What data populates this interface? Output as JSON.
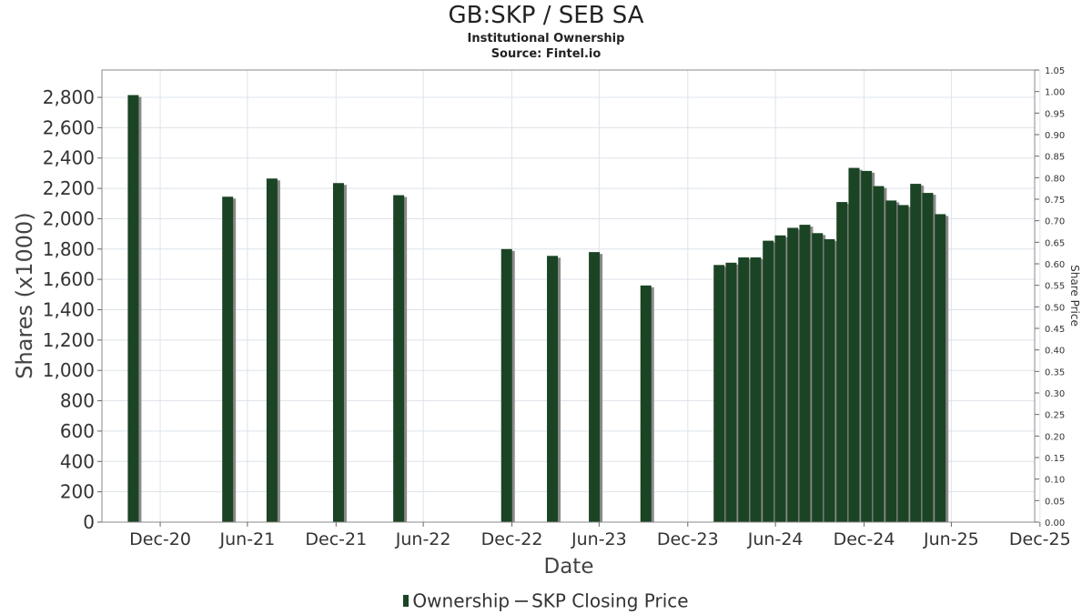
{
  "header": {
    "title": "GB:SKP / SEB SA",
    "subtitle": "Institutional Ownership",
    "source": "Source: Fintel.io"
  },
  "legend": {
    "ownership_label": "Ownership",
    "price_label": "SKP Closing Price"
  },
  "colors": {
    "bar": "#1b4424",
    "bar_shadow": "#8a8a8a",
    "grid": "#dde3ea",
    "frame": "#888888"
  },
  "chart_data": {
    "type": "bar",
    "title": "GB:SKP / SEB SA",
    "xlabel": "Date",
    "ylabel": "Shares (x1000)",
    "y2label": "Share Price",
    "ylim": [
      0,
      2980
    ],
    "y2lim": [
      0,
      1.05
    ],
    "yticks": [
      0,
      200,
      400,
      600,
      800,
      1000,
      1200,
      1400,
      1600,
      1800,
      2000,
      2200,
      2400,
      2600,
      2800
    ],
    "y2ticks": [
      "0.00",
      "0.05",
      "0.10",
      "0.15",
      "0.20",
      "0.25",
      "0.30",
      "0.35",
      "0.40",
      "0.45",
      "0.50",
      "0.55",
      "0.60",
      "0.65",
      "0.70",
      "0.75",
      "0.80",
      "0.85",
      "0.90",
      "0.95",
      "1.00",
      "1.05"
    ],
    "xlim": [
      "2020-09-01",
      "2025-12-20"
    ],
    "xticks": [
      {
        "date": "2020-12-31",
        "label": "Dec-20"
      },
      {
        "date": "2021-06-30",
        "label": "Jun-21"
      },
      {
        "date": "2021-12-31",
        "label": "Dec-21"
      },
      {
        "date": "2022-06-30",
        "label": "Jun-22"
      },
      {
        "date": "2022-12-31",
        "label": "Dec-22"
      },
      {
        "date": "2023-06-30",
        "label": "Jun-23"
      },
      {
        "date": "2023-12-31",
        "label": "Dec-23"
      },
      {
        "date": "2024-06-30",
        "label": "Jun-24"
      },
      {
        "date": "2024-12-31",
        "label": "Dec-24"
      },
      {
        "date": "2025-06-30",
        "label": "Jun-25"
      },
      {
        "date": "2025-12-31",
        "label": "Dec-25"
      }
    ],
    "grid": true,
    "legend_position": "bottom",
    "series": [
      {
        "name": "Ownership",
        "points": [
          {
            "date": "2020-11-05",
            "value": 2815
          },
          {
            "date": "2021-05-20",
            "value": 2145
          },
          {
            "date": "2021-08-20",
            "value": 2265
          },
          {
            "date": "2022-01-05",
            "value": 2235
          },
          {
            "date": "2022-05-10",
            "value": 2155
          },
          {
            "date": "2022-12-20",
            "value": 1800
          },
          {
            "date": "2023-03-25",
            "value": 1755
          },
          {
            "date": "2023-06-20",
            "value": 1780
          },
          {
            "date": "2023-10-05",
            "value": 1560
          },
          {
            "date": "2024-03-05",
            "value": 1695
          },
          {
            "date": "2024-03-30",
            "value": 1710
          },
          {
            "date": "2024-04-25",
            "value": 1745
          },
          {
            "date": "2024-05-20",
            "value": 1745
          },
          {
            "date": "2024-06-15",
            "value": 1855
          },
          {
            "date": "2024-07-10",
            "value": 1890
          },
          {
            "date": "2024-08-05",
            "value": 1940
          },
          {
            "date": "2024-08-30",
            "value": 1960
          },
          {
            "date": "2024-09-25",
            "value": 1905
          },
          {
            "date": "2024-10-20",
            "value": 1865
          },
          {
            "date": "2024-11-15",
            "value": 2110
          },
          {
            "date": "2024-12-10",
            "value": 2335
          },
          {
            "date": "2025-01-05",
            "value": 2315
          },
          {
            "date": "2025-01-30",
            "value": 2215
          },
          {
            "date": "2025-02-25",
            "value": 2120
          },
          {
            "date": "2025-03-22",
            "value": 2090
          },
          {
            "date": "2025-04-17",
            "value": 2230
          },
          {
            "date": "2025-05-12",
            "value": 2170
          },
          {
            "date": "2025-06-07",
            "value": 2030
          }
        ]
      }
    ]
  }
}
